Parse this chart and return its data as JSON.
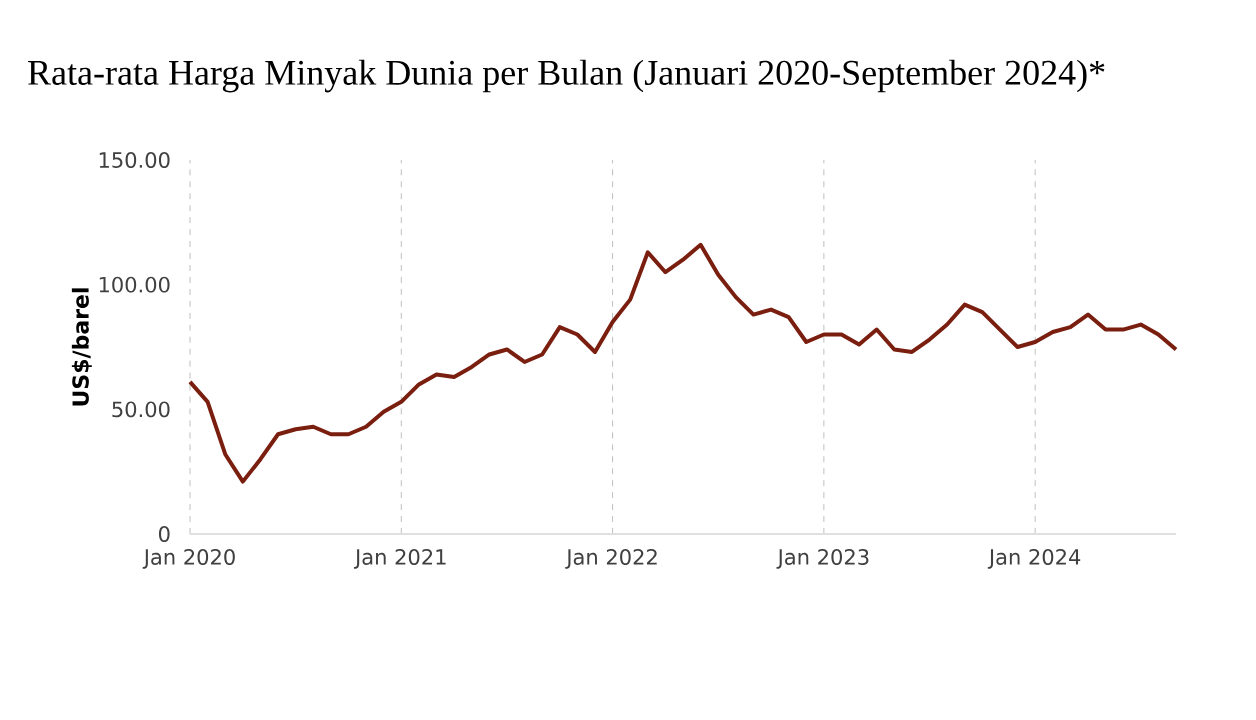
{
  "chart_data": {
    "type": "line",
    "title": "Rata-rata Harga Minyak Dunia per Bulan (Januari 2020-September 2024)*",
    "ylabel": "US$/barel",
    "x": [
      "2020-01",
      "2020-02",
      "2020-03",
      "2020-04",
      "2020-05",
      "2020-06",
      "2020-07",
      "2020-08",
      "2020-09",
      "2020-10",
      "2020-11",
      "2020-12",
      "2021-01",
      "2021-02",
      "2021-03",
      "2021-04",
      "2021-05",
      "2021-06",
      "2021-07",
      "2021-08",
      "2021-09",
      "2021-10",
      "2021-11",
      "2021-12",
      "2022-01",
      "2022-02",
      "2022-03",
      "2022-04",
      "2022-05",
      "2022-06",
      "2022-07",
      "2022-08",
      "2022-09",
      "2022-10",
      "2022-11",
      "2022-12",
      "2023-01",
      "2023-02",
      "2023-03",
      "2023-04",
      "2023-05",
      "2023-06",
      "2023-07",
      "2023-08",
      "2023-09",
      "2023-10",
      "2023-11",
      "2023-12",
      "2024-01",
      "2024-02",
      "2024-03",
      "2024-04",
      "2024-05",
      "2024-06",
      "2024-07",
      "2024-08",
      "2024-09"
    ],
    "series": [
      {
        "color": "#7a1f0f",
        "values": [
          61,
          53,
          32,
          21,
          30,
          40,
          42,
          43,
          40,
          40,
          43,
          49,
          53,
          60,
          64,
          63,
          67,
          72,
          74,
          69,
          72,
          83,
          80,
          73,
          85,
          94,
          113,
          105,
          110,
          116,
          104,
          95,
          88,
          90,
          87,
          77,
          80,
          80,
          76,
          82,
          74,
          73,
          78,
          84,
          92,
          89,
          82,
          75,
          77,
          81,
          83,
          88,
          82,
          82,
          84,
          80,
          74
        ]
      }
    ],
    "xlim": [
      "2020-01",
      "2024-09"
    ],
    "xticks": [
      {
        "value": "2020-01",
        "label": "Jan 2020"
      },
      {
        "value": "2021-01",
        "label": "Jan 2021"
      },
      {
        "value": "2022-01",
        "label": "Jan 2022"
      },
      {
        "value": "2023-01",
        "label": "Jan 2023"
      },
      {
        "value": "2024-01",
        "label": "Jan 2024"
      }
    ],
    "ylim": [
      0,
      150
    ],
    "yticks": [
      {
        "value": 0,
        "label": "0"
      },
      {
        "value": 50,
        "label": "50.00"
      },
      {
        "value": 100,
        "label": "100.00"
      },
      {
        "value": 150,
        "label": "150.00"
      }
    ],
    "grid": "x",
    "marker": "none",
    "line_style": "solid"
  }
}
